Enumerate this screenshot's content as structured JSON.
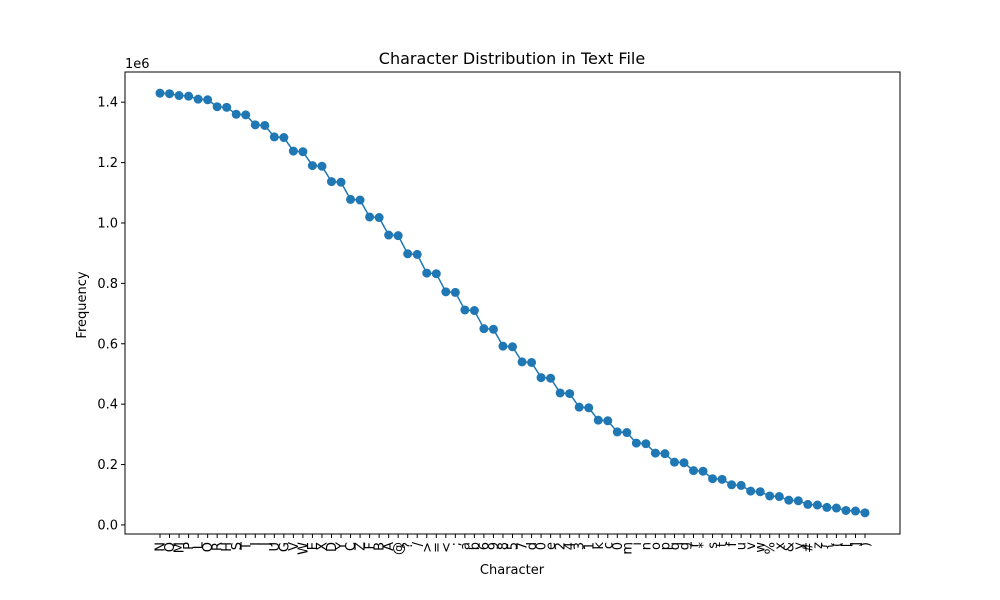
{
  "chart_data": {
    "type": "line",
    "title": "Character Distribution in Text File",
    "xlabel": "Character",
    "ylabel": "Frequency",
    "y_offset_text": "1e6",
    "ylim": [
      -0.03,
      1.5
    ],
    "yticks": [
      0.0,
      0.2,
      0.4,
      0.6,
      0.8,
      1.0,
      1.2,
      1.4
    ],
    "ytick_labels": [
      "0.0",
      "0.2",
      "0.4",
      "0.6",
      "0.8",
      "1.0",
      "1.2",
      "1.4"
    ],
    "grid": false,
    "markers": true,
    "color": "#1f77b4",
    "categories": [
      "N",
      "Q",
      "M",
      "P",
      "L",
      "O",
      "R",
      "H",
      "S",
      "T",
      "I",
      "J",
      "U",
      "G",
      "V",
      "W",
      "E",
      "X",
      "D",
      "Y",
      "C",
      "Z",
      "F",
      "B",
      "A",
      "@",
      "?",
      "/",
      ">",
      "=",
      "<",
      ";",
      "a",
      "b",
      "6",
      "9",
      "8",
      "5",
      "7",
      "d",
      "0",
      "e",
      "2",
      "4",
      "3",
      "1",
      "k",
      "c",
      "0",
      "m",
      "i",
      "n",
      "o",
      "p",
      "q",
      "g",
      "r",
      "*",
      "s",
      "t",
      "f",
      "u",
      "v",
      "w",
      "%",
      "x",
      "&",
      "y",
      "#",
      "z",
      "{",
      "(",
      "[",
      "]",
      ")"
    ],
    "series": [
      {
        "values": [
          1430000,
          1428000,
          1422000,
          1420000,
          1410000,
          1408000,
          1385000,
          1383000,
          1360000,
          1358000,
          1325000,
          1323000,
          1285000,
          1283000,
          1238000,
          1236000,
          1190000,
          1188000,
          1137000,
          1135000,
          1078000,
          1076000,
          1020000,
          1018000,
          960000,
          958000,
          898000,
          896000,
          834000,
          832000,
          772000,
          770000,
          712000,
          710000,
          650000,
          648000,
          592000,
          590000,
          540000,
          538000,
          488000,
          486000,
          437000,
          435000,
          390000,
          388000,
          347000,
          345000,
          308000,
          306000,
          271000,
          269000,
          238000,
          236000,
          208000,
          206000,
          180000,
          178000,
          153000,
          151000,
          133000,
          131000,
          112000,
          110000,
          96000,
          94000,
          82000,
          80000,
          68000,
          66000,
          58000,
          56000,
          48000,
          46000,
          40000
        ]
      }
    ]
  }
}
